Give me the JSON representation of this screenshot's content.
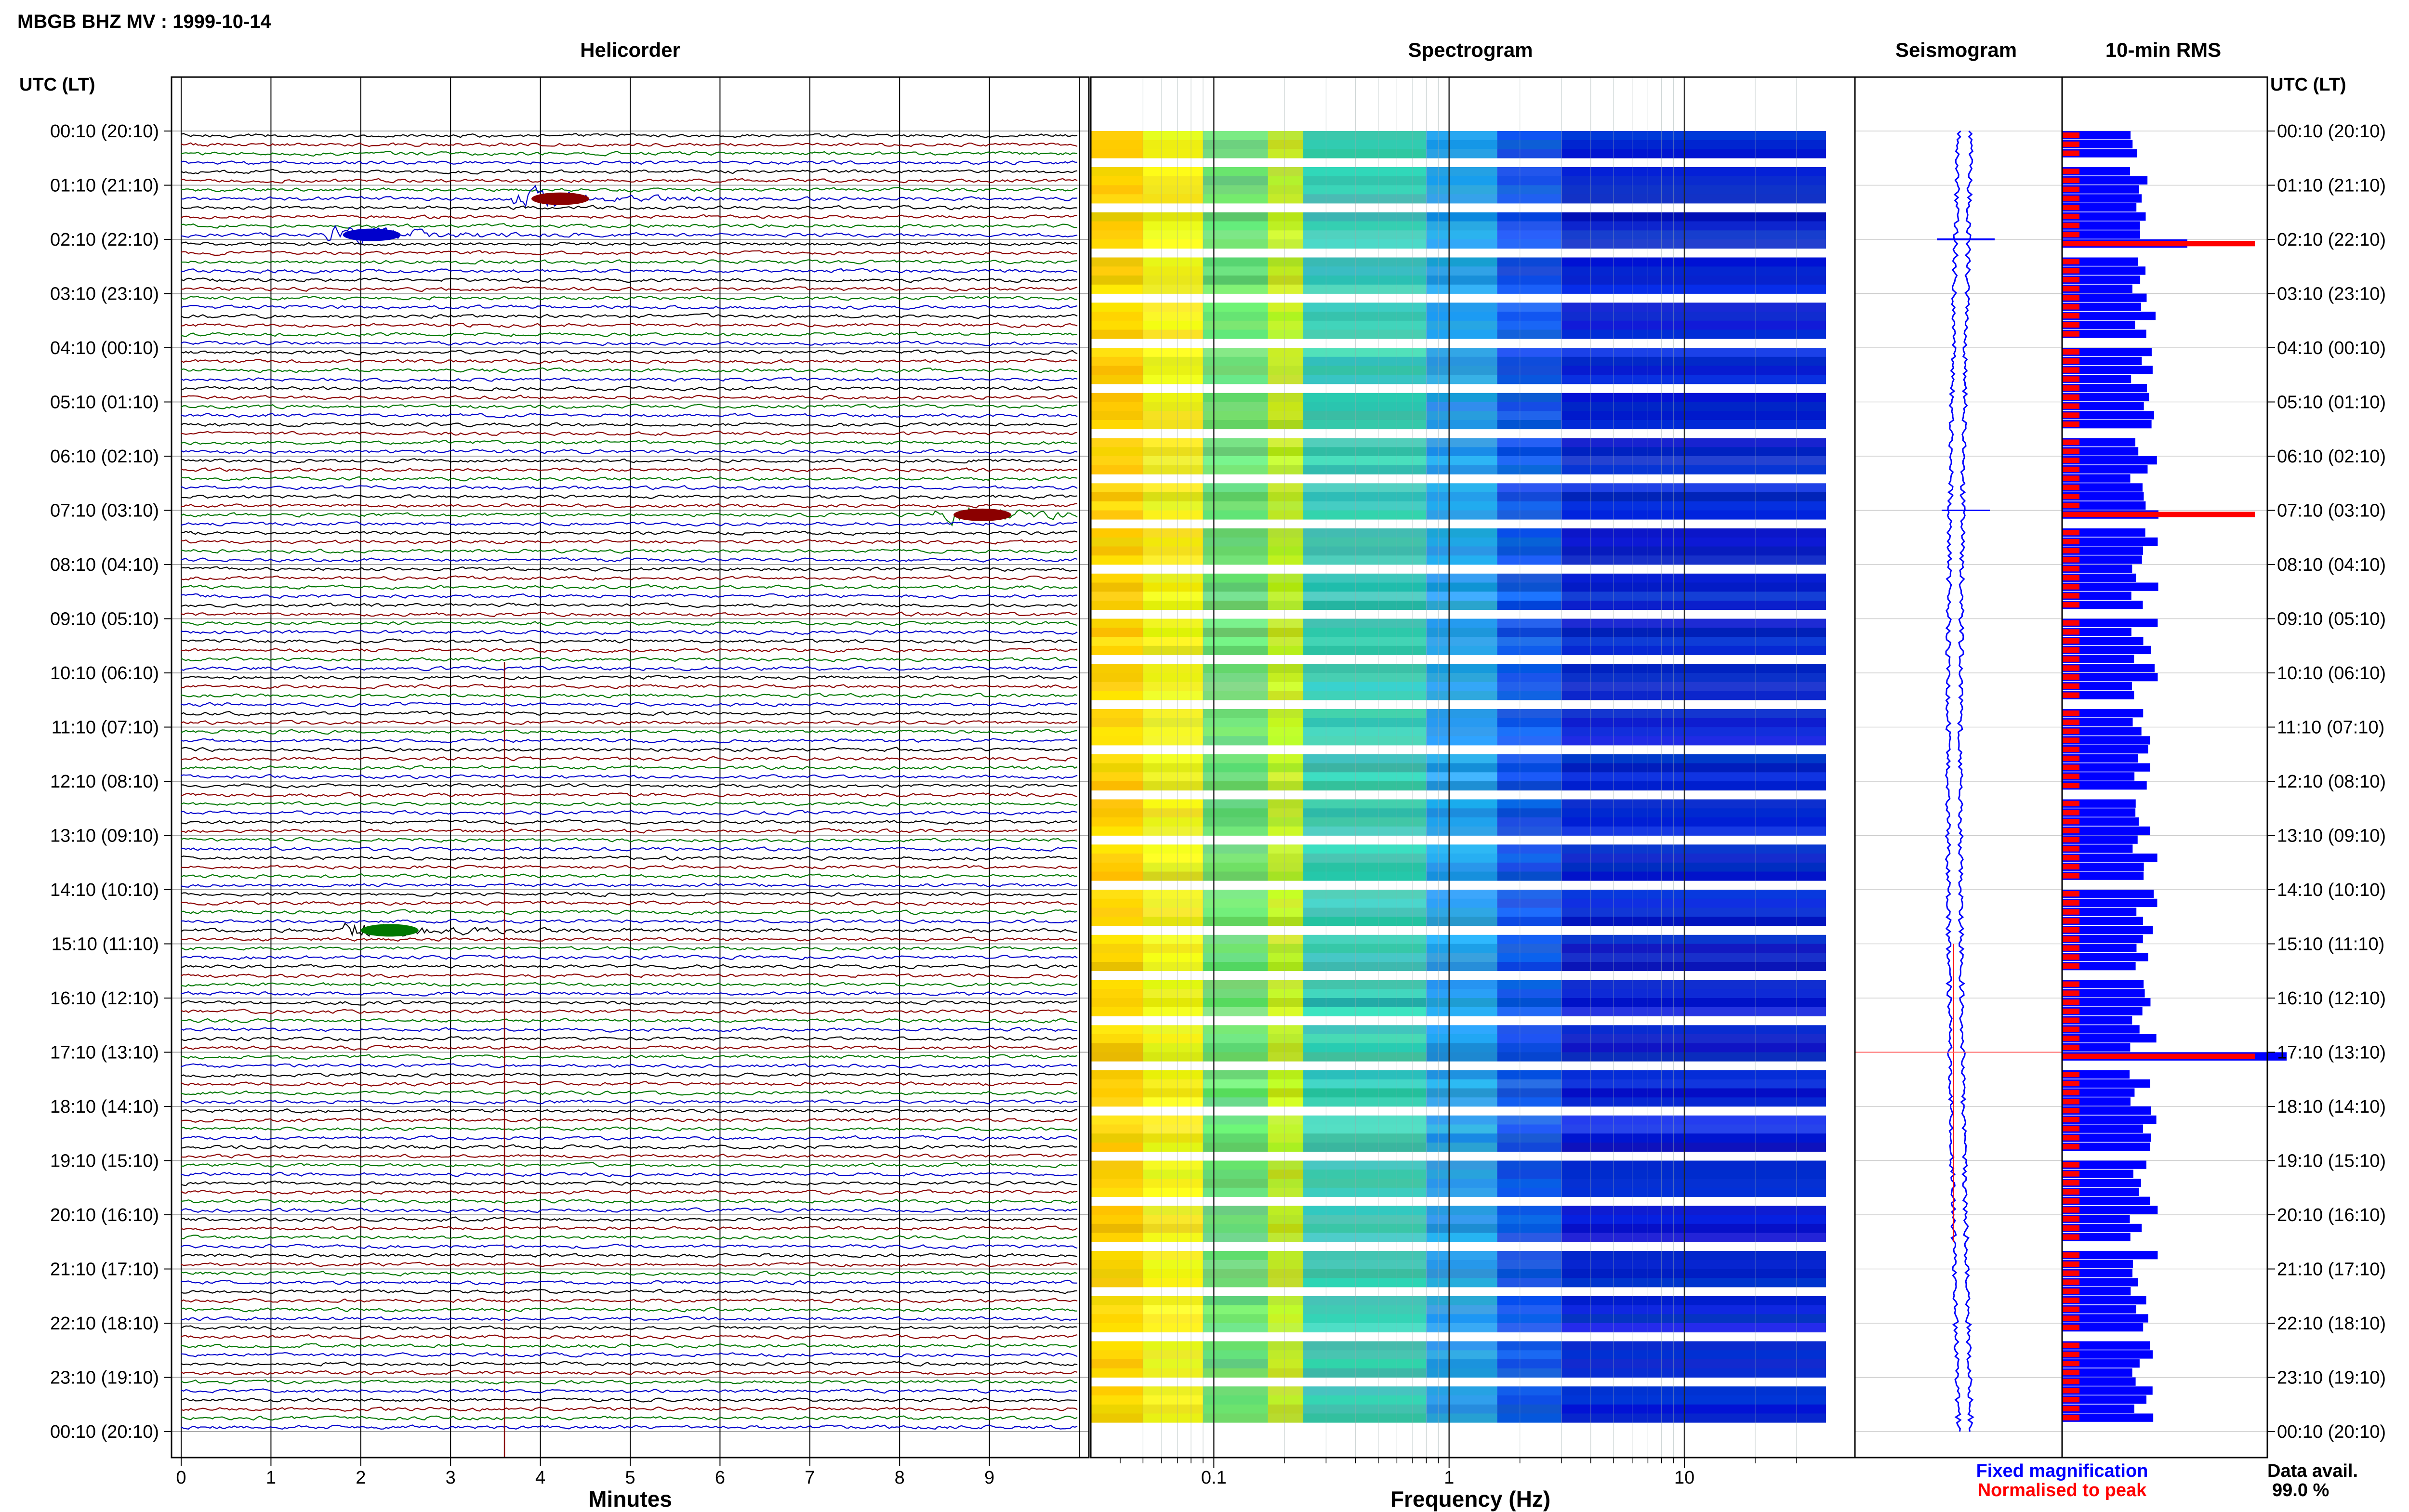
{
  "header": {
    "title": "MBGB BHZ MV : 1999-10-14"
  },
  "panels": {
    "helicorder": "Helicorder",
    "spectrogram": "Spectrogram",
    "seismogram": "Seismogram",
    "rms": "10-min RMS"
  },
  "axes": {
    "time_label_left": "UTC (LT)",
    "time_label_right": "UTC (LT)",
    "minutes_label": "Minutes",
    "frequency_label": "Frequency (Hz)"
  },
  "legend": {
    "fixed": "Fixed magnification",
    "normalised": "Normalised to peak",
    "fixed_color": "#0000ff",
    "normalised_color": "#ff0000"
  },
  "data_availability": {
    "label": "Data avail.",
    "value": "99.0 %"
  },
  "chart_data": {
    "type": "table",
    "hour_labels": [
      "00:10 (20:10)",
      "01:10 (21:10)",
      "02:10 (22:10)",
      "03:10 (23:10)",
      "04:10 (00:10)",
      "05:10 (01:10)",
      "06:10 (02:10)",
      "07:10 (03:10)",
      "08:10 (04:10)",
      "09:10 (05:10)",
      "10:10 (06:10)",
      "11:10 (07:10)",
      "12:10 (08:10)",
      "13:10 (09:10)",
      "14:10 (10:10)",
      "15:10 (11:10)",
      "16:10 (12:10)",
      "17:10 (13:10)",
      "18:10 (14:10)",
      "19:10 (15:10)",
      "20:10 (16:10)",
      "21:10 (17:10)",
      "22:10 (18:10)",
      "23:10 (19:10)",
      "00:10 (20:10)"
    ],
    "minutes_ticks": [
      "0",
      "1",
      "2",
      "3",
      "4",
      "5",
      "6",
      "7",
      "8",
      "9"
    ],
    "minutes_range": [
      0,
      10
    ],
    "frequency_ticks": [
      "0.1",
      "1",
      "10"
    ],
    "frequency_range_hz": [
      0.03,
      40
    ],
    "frequency_scale": "log",
    "trace_colors": [
      "#000000",
      "#8b0000",
      "#007700",
      "#0000cc"
    ],
    "rows_per_day": 144,
    "events": [
      {
        "time_utc": "01:20",
        "minute": 3.9,
        "color": "#8b0000"
      },
      {
        "time_utc": "02:00",
        "minute": 1.8,
        "color": "#0000cc"
      },
      {
        "time_utc": "07:10",
        "minute": 8.6,
        "color": "#8b0000"
      },
      {
        "time_utc": "14:50",
        "minute": 2.0,
        "color": "#007700"
      }
    ]
  }
}
